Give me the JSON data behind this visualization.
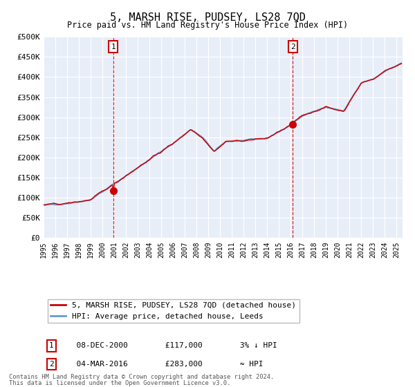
{
  "title": "5, MARSH RISE, PUDSEY, LS28 7QD",
  "subtitle": "Price paid vs. HM Land Registry's House Price Index (HPI)",
  "ylim": [
    0,
    500000
  ],
  "yticks": [
    0,
    50000,
    100000,
    150000,
    200000,
    250000,
    300000,
    350000,
    400000,
    450000,
    500000
  ],
  "ytick_labels": [
    "£0",
    "£50K",
    "£100K",
    "£150K",
    "£200K",
    "£250K",
    "£300K",
    "£350K",
    "£400K",
    "£450K",
    "£500K"
  ],
  "xlim_start": 1995.0,
  "xlim_end": 2025.5,
  "xtick_years": [
    1995,
    1996,
    1997,
    1998,
    1999,
    2000,
    2001,
    2002,
    2003,
    2004,
    2005,
    2006,
    2007,
    2008,
    2009,
    2010,
    2011,
    2012,
    2013,
    2014,
    2015,
    2016,
    2017,
    2018,
    2019,
    2020,
    2021,
    2022,
    2023,
    2024,
    2025
  ],
  "sale1_x": 2000.92,
  "sale1_y": 117000,
  "sale1_label": "1",
  "sale2_x": 2016.17,
  "sale2_y": 283000,
  "sale2_label": "2",
  "hpi_color": "#6699cc",
  "price_color": "#cc0000",
  "bg_plot": "#e8eef8",
  "bg_fig": "#ffffff",
  "grid_color": "#ffffff",
  "note_line1": "Contains HM Land Registry data © Crown copyright and database right 2024.",
  "note_line2": "This data is licensed under the Open Government Licence v3.0.",
  "legend_line1": "5, MARSH RISE, PUDSEY, LS28 7QD (detached house)",
  "legend_line2": "HPI: Average price, detached house, Leeds",
  "ann1_date": "08-DEC-2000",
  "ann1_price": "£117,000",
  "ann1_rel": "3% ↓ HPI",
  "ann2_date": "04-MAR-2016",
  "ann2_price": "£283,000",
  "ann2_rel": "≈ HPI",
  "hpi_key_times": [
    1995,
    1997,
    1999,
    2001.0,
    2002.5,
    2004,
    2006,
    2007.5,
    2008.5,
    2009.5,
    2010.5,
    2012,
    2014,
    2016,
    2017,
    2019,
    2020.5,
    2022,
    2023,
    2024,
    2025.5
  ],
  "hpi_key_vals": [
    82000,
    86000,
    95000,
    135000,
    165000,
    195000,
    235000,
    270000,
    250000,
    215000,
    240000,
    242000,
    248000,
    280000,
    305000,
    325000,
    315000,
    385000,
    395000,
    415000,
    435000
  ]
}
